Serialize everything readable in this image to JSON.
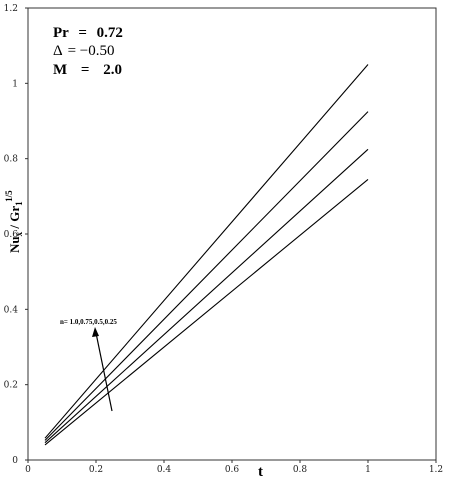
{
  "chart_data": {
    "type": "line",
    "xlabel": "t",
    "ylabel": {
      "main": "Nu",
      "sub1": "x",
      "mid": " / Gr",
      "sub2": "1",
      "sup": "1/5"
    },
    "xlim": [
      0,
      1.2
    ],
    "ylim": [
      0,
      1.2
    ],
    "x_ticks": [
      "0",
      "0.2",
      "0.4",
      "0.6",
      "0.8",
      "1",
      "1.2"
    ],
    "y_ticks": [
      "0",
      "0.2",
      "0.4",
      "0.6",
      "0.8",
      "1",
      "1.2"
    ],
    "grid": false,
    "parameters": [
      {
        "label": "Pr",
        "eq": "=",
        "value": "0.72"
      },
      {
        "label": "Δ",
        "eq": "=",
        "value": "−0.50"
      },
      {
        "label": "M",
        "eq": "=",
        "value": "2.0"
      }
    ],
    "annotation": "n= 1.0,0.75,0.5,0.25",
    "series": [
      {
        "x": [
          0.05,
          1.0
        ],
        "y": [
          0.058,
          1.05
        ]
      },
      {
        "x": [
          0.05,
          1.0
        ],
        "y": [
          0.052,
          0.925
        ]
      },
      {
        "x": [
          0.05,
          1.0
        ],
        "y": [
          0.046,
          0.825
        ]
      },
      {
        "x": [
          0.05,
          1.0
        ],
        "y": [
          0.04,
          0.745
        ]
      }
    ]
  },
  "colors": {
    "line": "#000000",
    "axis": "#333333"
  }
}
